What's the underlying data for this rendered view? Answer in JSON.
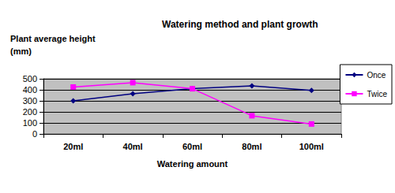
{
  "chart_data": {
    "type": "line",
    "title": "Watering method and plant growth",
    "y_label": "Plant average height\n(mm)",
    "x_label": "Watering amount",
    "categories": [
      "20ml",
      "40ml",
      "60ml",
      "80ml",
      "100ml"
    ],
    "series": [
      {
        "name": "Once",
        "color": "#000080",
        "marker": "diamond",
        "values": [
          300,
          365,
          410,
          435,
          395
        ]
      },
      {
        "name": "Twice",
        "color": "#FF00FF",
        "marker": "square",
        "values": [
          425,
          465,
          410,
          165,
          90
        ]
      }
    ],
    "ylim": [
      0,
      500
    ],
    "yticks": [
      0,
      100,
      200,
      300,
      400,
      500
    ],
    "grid": true,
    "legend": "right"
  }
}
